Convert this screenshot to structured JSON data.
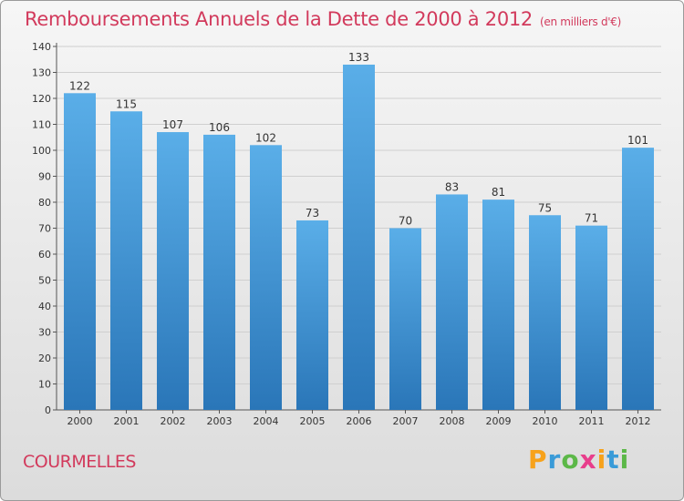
{
  "chart_data": {
    "type": "bar",
    "title": "Remboursements Annuels de la Dette de 2000 à 2012",
    "unit_note": "(en milliers d'€)",
    "categories": [
      "2000",
      "2001",
      "2002",
      "2003",
      "2004",
      "2005",
      "2006",
      "2007",
      "2008",
      "2009",
      "2010",
      "2011",
      "2012"
    ],
    "values": [
      122,
      115,
      107,
      106,
      102,
      73,
      133,
      70,
      83,
      81,
      75,
      71,
      101
    ],
    "data_labels": [
      "122",
      "115",
      "107",
      "106",
      "102",
      "73",
      "133",
      "70",
      "83",
      "81",
      "75",
      "71",
      "101"
    ],
    "ylim": [
      0,
      140
    ],
    "yticks": [
      0,
      10,
      20,
      30,
      40,
      50,
      60,
      70,
      80,
      90,
      100,
      110,
      120,
      130,
      140
    ],
    "xlabel": "",
    "ylabel": "",
    "grid": true,
    "legend": "none",
    "colors": {
      "bar_top": "#5aaee8",
      "bar_bottom": "#2a76b8",
      "title": "#d23a5c"
    }
  },
  "commune": "COURMELLES",
  "brand": {
    "name": "Proxiti",
    "letters": [
      "P",
      "r",
      "o",
      "x",
      "i",
      "t",
      "i"
    ],
    "colors": [
      "#f7a21b",
      "#3a9bd8",
      "#5cb848",
      "#e83e8c",
      "#f7a21b",
      "#3a9bd8",
      "#5cb848"
    ]
  }
}
